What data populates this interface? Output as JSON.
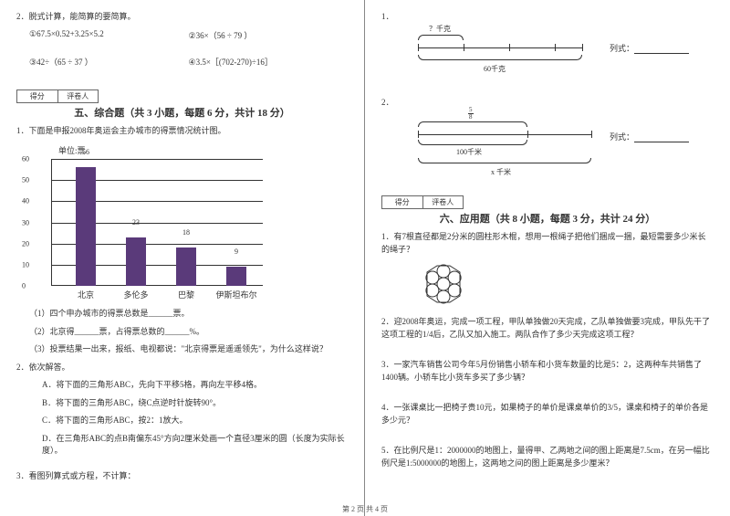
{
  "left": {
    "q2_title": "2．脱式计算，能简算的要简算。",
    "calc1": "①67.5×0.52+3.25×5.2",
    "calc2": "②36×（56 ÷ 79 ）",
    "calc3": "③42÷（65 ÷ 37 ）",
    "calc4": "④3.5×［(702-270)÷16］",
    "score_l": "得分",
    "score_r": "评卷人",
    "sec5_title": "五、综合题（共 3 小题，每题 6 分，共计 18 分）",
    "q5_1": "1．下面是申报2008年奥运会主办城市的得票情况统计图。",
    "chart": {
      "unit": "单位:票",
      "y_ticks": [
        0,
        10,
        20,
        30,
        40,
        50,
        60
      ],
      "y_max": 60,
      "bars": [
        {
          "label": "北京",
          "value": 56,
          "color": "#5a3a7a"
        },
        {
          "label": "多伦多",
          "value": 23,
          "color": "#5a3a7a"
        },
        {
          "label": "巴黎",
          "value": 18,
          "color": "#5a3a7a"
        },
        {
          "label": "伊斯坦布尔",
          "value": 9,
          "color": "#5a3a7a"
        }
      ]
    },
    "q5_1_1": "（1）四个申办城市的得票总数是______票。",
    "q5_1_2": "（2）北京得______票，占得票总数的______%。",
    "q5_1_3": "（3）投票结果一出来，报纸、电视都说：\"北京得票是遥遥领先\"，为什么这样说？",
    "q5_2": "2．依次解答。",
    "q5_2_a": "A．将下面的三角形ABC，先向下平移5格，再向左平移4格。",
    "q5_2_b": "B．将下面的三角形ABC，绕C点逆时针旋转90°。",
    "q5_2_c": "C．将下面的三角形ABC，按2：1放大。",
    "q5_2_d": "D．在三角形ABC的点B南偏东45°方向2厘米处画一个直径3厘米的圆（长度为实际长度）。",
    "q5_3": "3．看图列算式或方程，不计算："
  },
  "right": {
    "d1_label": "1．",
    "d1_top": "？千克",
    "d1_bottom": "60千克",
    "d1_formula": "列式：",
    "d2_label": "2．",
    "d2_frac_n": "5",
    "d2_frac_d": "8",
    "d2_mid": "100千米",
    "d2_bottom": "x 千米",
    "d2_formula": "列式：",
    "score_l": "得分",
    "score_r": "评卷人",
    "sec6_title": "六、应用题（共 8 小题，每题 3 分，共计 24 分）",
    "q6_1": "1．有7根直径都是2分米的圆柱形木棍，想用一根绳子把他们捆成一捆，最短需要多少米长的绳子？",
    "q6_2": "2．迎2008年奥运，完成一项工程，甲队单独做20天完成，乙队单独做要3完成，甲队先干了这项工程的1/4后，乙队又加入施工。两队合作了多少天完成这项工程？",
    "q6_3": "3．一家汽车销售公司今年5月份销售小轿车和小货车数量的比是5：2，这两种车共销售了1400辆。小轿车比小货车多买了多少辆？",
    "q6_4": "4．一张课桌比一把椅子贵10元，如果椅子的单价是课桌单价的3/5，课桌和椅子的单价各是多少元？",
    "q6_5": "5．在比例尺是1：2000000的地图上，量得甲、乙两地之间的图上距离是7.5cm，在另一幅比例尺是1:5000000的地图上，这两地之间的图上距离是多少厘米？"
  },
  "footer": "第 2 页 共 4 页"
}
